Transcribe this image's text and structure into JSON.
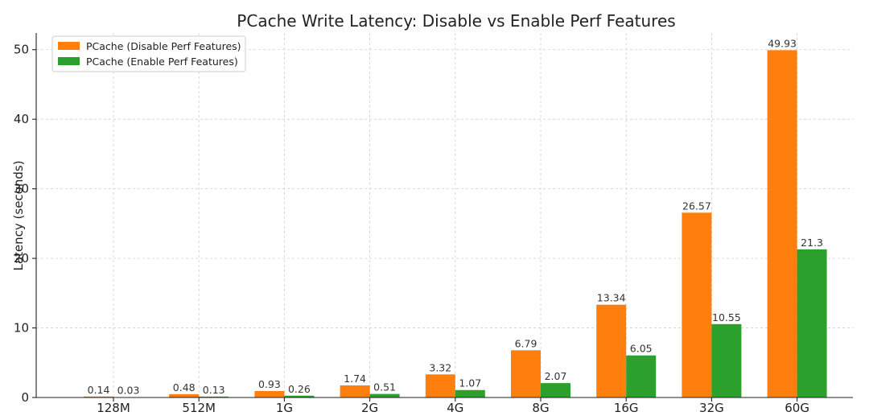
{
  "chart_data": {
    "type": "bar",
    "title": "PCache Write Latency: Disable vs Enable Perf Features",
    "xlabel": "",
    "ylabel": "Latency (seconds)",
    "categories": [
      "128M",
      "512M",
      "1G",
      "2G",
      "4G",
      "8G",
      "16G",
      "32G",
      "60G"
    ],
    "series": [
      {
        "name": "PCache (Disable Perf Features)",
        "color": "#ff7f0e",
        "values": [
          0.14,
          0.48,
          0.93,
          1.74,
          3.32,
          6.79,
          13.34,
          26.57,
          49.93
        ]
      },
      {
        "name": "PCache (Enable Perf Features)",
        "color": "#2ca02c",
        "values": [
          0.03,
          0.13,
          0.26,
          0.51,
          1.07,
          2.07,
          6.05,
          10.55,
          21.3
        ]
      }
    ],
    "ylim": [
      0,
      52.4
    ],
    "yticks": [
      0,
      10,
      20,
      30,
      40,
      50
    ],
    "grid": true,
    "legend_position": "top-left"
  }
}
